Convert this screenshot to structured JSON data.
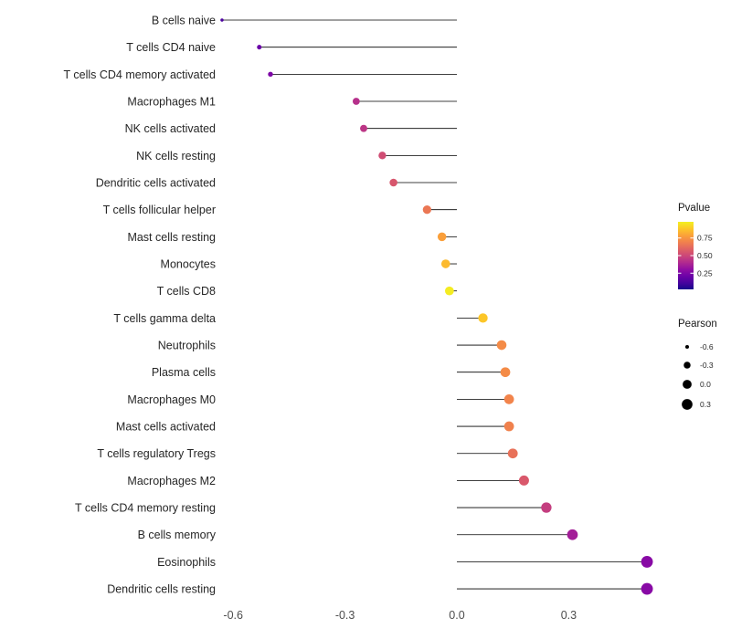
{
  "chart_data": {
    "type": "scatter",
    "subtype": "lollipop",
    "title": "",
    "xlabel": "",
    "ylabel": "",
    "xlim": [
      -0.72,
      0.58
    ],
    "x_ticks": [
      -0.6,
      -0.3,
      0.0,
      0.3
    ],
    "x_tick_labels": [
      "-0.6",
      "-0.3",
      "0.0",
      "0.3"
    ],
    "grid": "off",
    "legend_position": "right",
    "points": [
      {
        "label": "B cells naive",
        "pearson": -0.63,
        "pvalue": 0.13
      },
      {
        "label": "T cells CD4 naive",
        "pearson": -0.53,
        "pvalue": 0.2
      },
      {
        "label": "T cells CD4 memory activated",
        "pearson": -0.5,
        "pvalue": 0.25
      },
      {
        "label": "Macrophages M1",
        "pearson": -0.27,
        "pvalue": 0.42
      },
      {
        "label": "NK cells activated",
        "pearson": -0.25,
        "pvalue": 0.44
      },
      {
        "label": "NK cells resting",
        "pearson": -0.2,
        "pvalue": 0.52
      },
      {
        "label": "Dendritic cells activated",
        "pearson": -0.17,
        "pvalue": 0.55
      },
      {
        "label": "T cells follicular helper",
        "pearson": -0.08,
        "pvalue": 0.66
      },
      {
        "label": "Mast cells resting",
        "pearson": -0.04,
        "pvalue": 0.78
      },
      {
        "label": "Monocytes",
        "pearson": -0.03,
        "pvalue": 0.85
      },
      {
        "label": "T cells CD8",
        "pearson": -0.02,
        "pvalue": 0.97
      },
      {
        "label": "T cells gamma delta",
        "pearson": 0.07,
        "pvalue": 0.88
      },
      {
        "label": "Neutrophils",
        "pearson": 0.12,
        "pvalue": 0.72
      },
      {
        "label": "Plasma cells",
        "pearson": 0.13,
        "pvalue": 0.72
      },
      {
        "label": "Macrophages M0",
        "pearson": 0.14,
        "pvalue": 0.7
      },
      {
        "label": "Mast cells activated",
        "pearson": 0.14,
        "pvalue": 0.69
      },
      {
        "label": "T cells regulatory Tregs",
        "pearson": 0.15,
        "pvalue": 0.64
      },
      {
        "label": "Macrophages M2",
        "pearson": 0.18,
        "pvalue": 0.56
      },
      {
        "label": "T cells CD4 memory resting",
        "pearson": 0.24,
        "pvalue": 0.47
      },
      {
        "label": "B cells memory",
        "pearson": 0.31,
        "pvalue": 0.36
      },
      {
        "label": "Eosinophils",
        "pearson": 0.51,
        "pvalue": 0.28
      },
      {
        "label": "Dendritic cells resting",
        "pearson": 0.51,
        "pvalue": 0.28
      }
    ],
    "legend": {
      "pvalue_title": "Pvalue",
      "pvalue_range": [
        0.02,
        0.98
      ],
      "pvalue_ticks": [
        0.75,
        0.5,
        0.25
      ],
      "pvalue_tick_labels": [
        "0.75",
        "0.50",
        "0.25"
      ],
      "pearson_title": "Pearson",
      "pearson_sizes": [
        -0.6,
        -0.3,
        0.0,
        0.3
      ],
      "pearson_size_labels": [
        "-0.6",
        "-0.3",
        "0.0",
        "0.3"
      ]
    },
    "colors": {
      "colormap": "plasma",
      "stem": "#000000",
      "point_size_legend": "#000000",
      "axis_text": "#4d4d4d",
      "category_text": "#262626",
      "background": "#ffffff"
    }
  }
}
